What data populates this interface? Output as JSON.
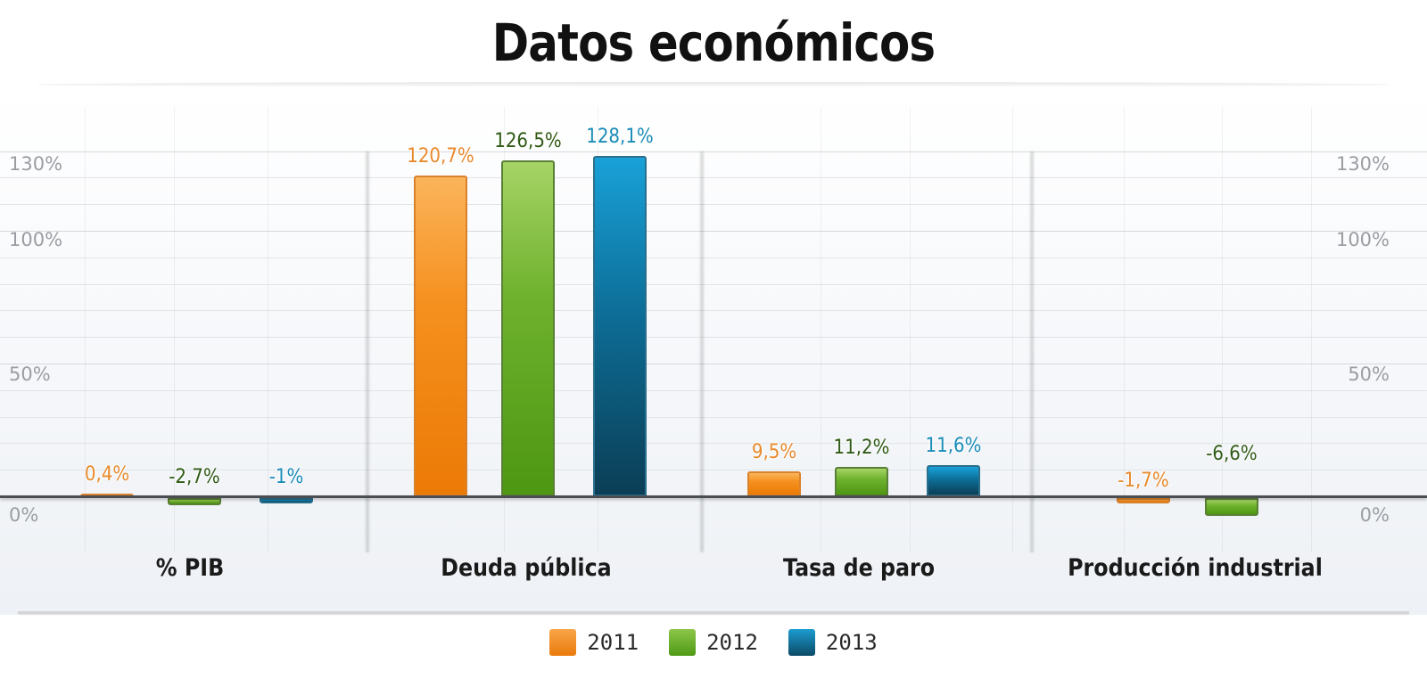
{
  "title": "Datos económicos",
  "y_axis": {
    "ticks": [
      {
        "label": "130%",
        "value": 130
      },
      {
        "label": "100%",
        "value": 100
      },
      {
        "label": "50%",
        "value": 50
      },
      {
        "label": "0%",
        "value": 0
      }
    ]
  },
  "legend": [
    {
      "label": "2011",
      "color": "#f08a1c"
    },
    {
      "label": "2012",
      "color": "#5fa825"
    },
    {
      "label": "2013",
      "color": "#0f6c93"
    }
  ],
  "categories": [
    {
      "label": "% PIB",
      "values": [
        {
          "series": "2011",
          "value": 0.4,
          "label": "0,4%"
        },
        {
          "series": "2012",
          "value": -2.7,
          "label": "-2,7%"
        },
        {
          "series": "2013",
          "value": -1,
          "label": "-1%"
        }
      ]
    },
    {
      "label": "Deuda pública",
      "values": [
        {
          "series": "2011",
          "value": 120.7,
          "label": "120,7%"
        },
        {
          "series": "2012",
          "value": 126.5,
          "label": "126,5%"
        },
        {
          "series": "2013",
          "value": 128.1,
          "label": "128,1%"
        }
      ]
    },
    {
      "label": "Tasa de paro",
      "values": [
        {
          "series": "2011",
          "value": 9.5,
          "label": "9,5%"
        },
        {
          "series": "2012",
          "value": 11.2,
          "label": "11,2%"
        },
        {
          "series": "2013",
          "value": 11.6,
          "label": "11,6%"
        }
      ]
    },
    {
      "label": "Producción industrial",
      "values": [
        {
          "series": "2011",
          "value": -1.7,
          "label": "-1,7%"
        },
        {
          "series": "2012",
          "value": -6.6,
          "label": "-6,6%"
        }
      ]
    }
  ],
  "chart_data": {
    "type": "bar",
    "title": "Datos económicos",
    "xlabel": "",
    "ylabel": "",
    "categories": [
      "% PIB",
      "Deuda pública",
      "Tasa de paro",
      "Producción industrial"
    ],
    "series": [
      {
        "name": "2011",
        "values": [
          0.4,
          120.7,
          9.5,
          -1.7
        ],
        "color": "#f08a1c"
      },
      {
        "name": "2012",
        "values": [
          -2.7,
          126.5,
          11.2,
          -6.6
        ],
        "color": "#5fa825"
      },
      {
        "name": "2013",
        "values": [
          -1,
          128.1,
          11.6,
          null
        ],
        "color": "#0f6c93"
      }
    ],
    "data_labels": {
      "2011": [
        "0,4%",
        "120,7%",
        "9,5%",
        "-1,7%"
      ],
      "2012": [
        "-2,7%",
        "126,5%",
        "11,2%",
        "-6,6%"
      ],
      "2013": [
        "-1%",
        "128,1%",
        "11,6%",
        null
      ]
    },
    "y_ticks": [
      "0%",
      "50%",
      "100%",
      "130%"
    ],
    "ylim": [
      -8,
      135
    ],
    "y_axis_both_sides": true,
    "grid": true,
    "legend_position": "bottom"
  }
}
